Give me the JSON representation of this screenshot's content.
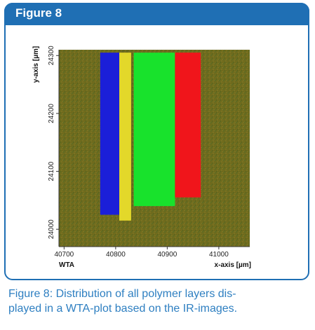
{
  "figure": {
    "title": "Figure 8",
    "caption": "Figure 8: Distribution of all polymer layers dis-\nplayed in a WTA-plot based on the IR-images."
  },
  "colors": {
    "header": "#1f6fb4",
    "caption": "#2e7fc1",
    "background_olive": "#6e6a1c"
  },
  "chart_data": {
    "type": "heatmap",
    "title": "",
    "xlabel": "x-axis [µm]",
    "ylabel": "y-axis [µm]",
    "corner_label": "WTA",
    "xlim": [
      40690,
      41060
    ],
    "ylim": [
      23970,
      24310
    ],
    "xticks": [
      40700,
      40800,
      40900,
      41000
    ],
    "yticks": [
      24000,
      24100,
      24200,
      24300
    ],
    "grid": false,
    "layers": [
      {
        "color": "#1b1fd8",
        "x_start": 40770,
        "x_end": 40807,
        "y_bottom": 24025,
        "y_top": 24305
      },
      {
        "color": "#e3d82a",
        "x_start": 40807,
        "x_end": 40830,
        "y_bottom": 24015,
        "y_top": 24305
      },
      {
        "color": "#18e22c",
        "x_start": 40835,
        "x_end": 40915,
        "y_bottom": 24040,
        "y_top": 24305
      },
      {
        "color": "#f0151b",
        "x_start": 40915,
        "x_end": 40965,
        "y_bottom": 24055,
        "y_top": 24305
      }
    ]
  }
}
